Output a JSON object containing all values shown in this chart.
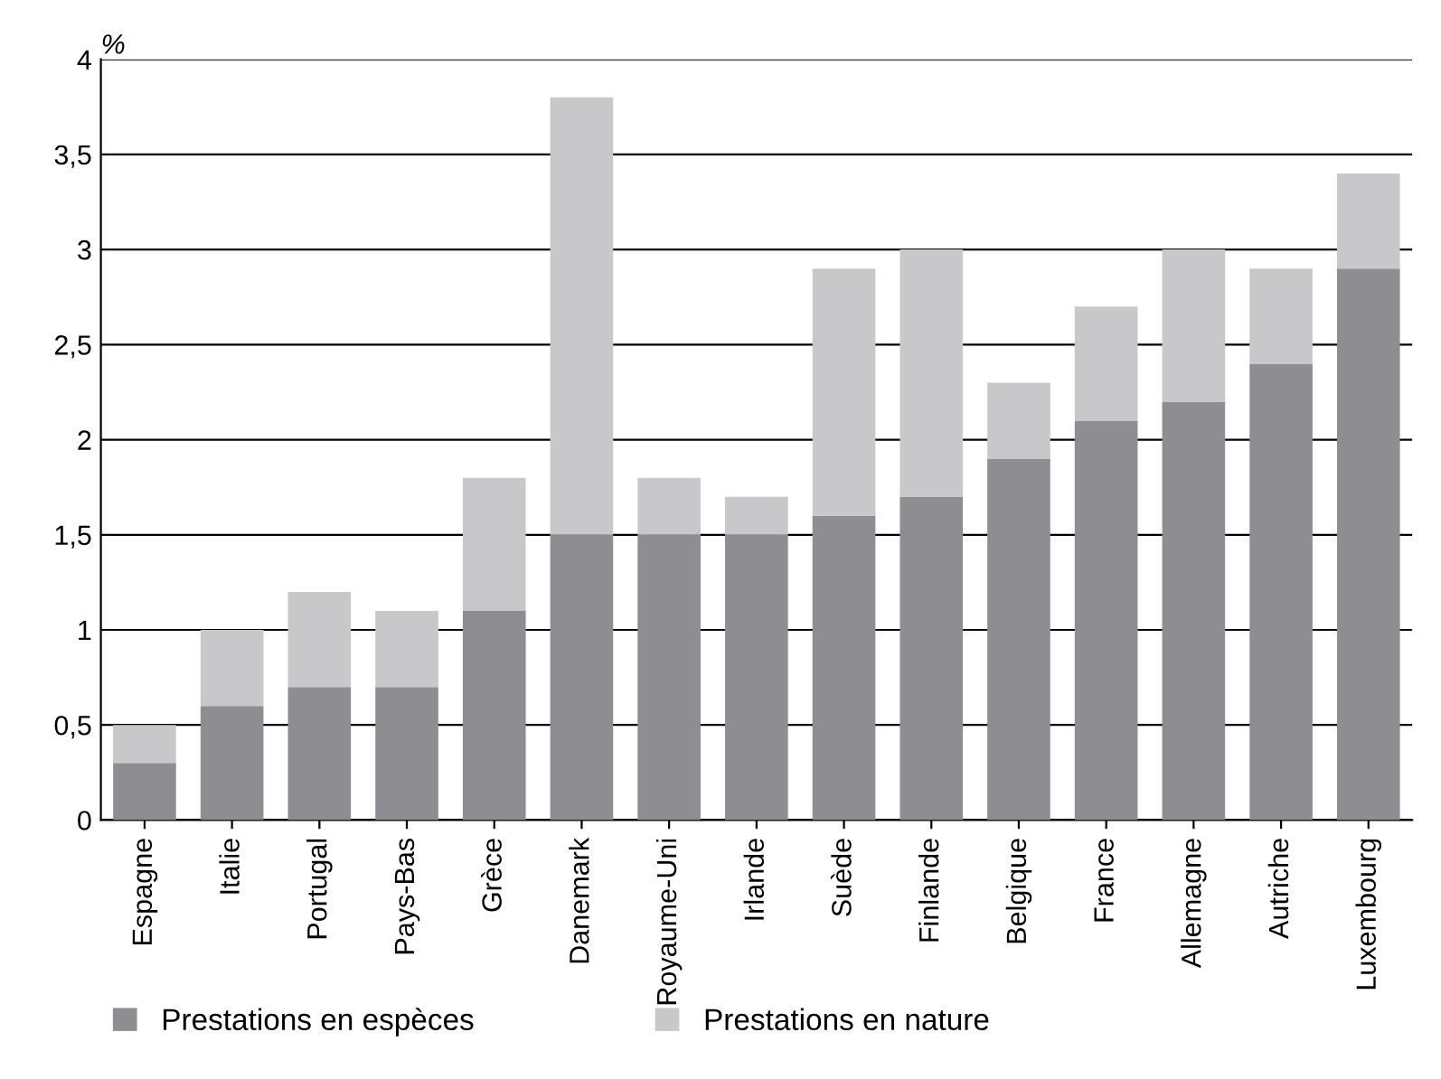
{
  "chart_data": {
    "type": "bar",
    "stacked": true,
    "ylabel": "%",
    "categories": [
      "Espagne",
      "Italie",
      "Portugal",
      "Pays-Bas",
      "Grèce",
      "Danemark",
      "Royaume-Uni",
      "Irlande",
      "Suède",
      "Finlande",
      "Belgique",
      "France",
      "Allemagne",
      "Autriche",
      "Luxembourg"
    ],
    "series": [
      {
        "name": "Prestations en espèces",
        "color": "#8e8e92",
        "values": [
          0.3,
          0.6,
          0.7,
          0.7,
          1.1,
          1.5,
          1.5,
          1.5,
          1.6,
          1.7,
          1.9,
          2.1,
          2.2,
          2.4,
          2.9
        ]
      },
      {
        "name": "Prestations en nature",
        "color": "#c8c8ca",
        "values": [
          0.2,
          0.4,
          0.5,
          0.4,
          0.7,
          2.3,
          0.3,
          0.2,
          1.3,
          1.3,
          0.4,
          0.6,
          0.8,
          0.5,
          0.5
        ]
      }
    ],
    "ylim": [
      0,
      4
    ],
    "yticks": [
      0,
      {
        "value": 0.5,
        "label": "0,5"
      },
      1,
      {
        "value": 1.5,
        "label": "1,5"
      },
      2,
      {
        "value": 2.5,
        "label": "2,5"
      },
      3,
      {
        "value": 3.5,
        "label": "3,5"
      },
      4
    ],
    "grid": "y",
    "legend": "bottom"
  }
}
